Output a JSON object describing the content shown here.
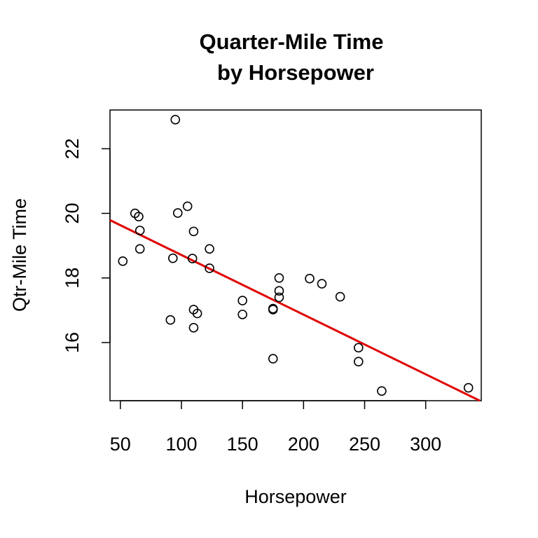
{
  "chart_data": {
    "type": "scatter",
    "title_line1": "Quarter-Mile Time",
    "title_line2": "by Horsepower",
    "xlabel": "Horsepower",
    "ylabel": "Qtr-Mile Time",
    "xlim": [
      41.5,
      345.5
    ],
    "ylim": [
      14.2,
      23.2
    ],
    "x_ticks": [
      50,
      100,
      150,
      200,
      250,
      300
    ],
    "y_ticks": [
      16,
      18,
      20,
      22
    ],
    "points": {
      "x": [
        110,
        110,
        93,
        110,
        175,
        105,
        245,
        62,
        95,
        123,
        123,
        180,
        180,
        180,
        205,
        215,
        230,
        66,
        52,
        65,
        97,
        150,
        150,
        245,
        175,
        66,
        91,
        113,
        264,
        175,
        335,
        109
      ],
      "y": [
        16.46,
        17.02,
        18.61,
        19.44,
        17.02,
        20.22,
        15.84,
        20.0,
        22.9,
        18.3,
        18.9,
        17.4,
        17.6,
        18.0,
        17.98,
        17.82,
        17.42,
        19.47,
        18.52,
        19.9,
        20.01,
        16.87,
        17.3,
        15.41,
        17.05,
        18.9,
        16.7,
        16.9,
        14.5,
        15.5,
        14.6,
        18.6
      ]
    },
    "fit_line": {
      "intercept": 20.556,
      "slope": -0.01846
    },
    "point_color": "#000000",
    "line_color": "#e00000",
    "grid": false,
    "legend": "none"
  }
}
